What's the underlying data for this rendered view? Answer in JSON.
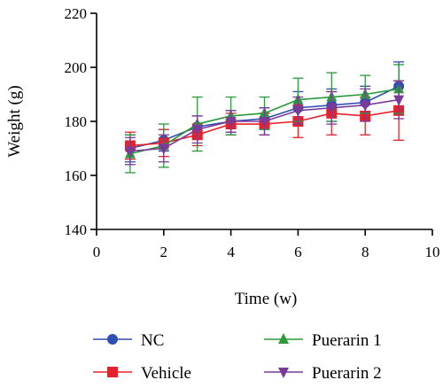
{
  "chart_data": {
    "type": "line",
    "title": "",
    "xlabel": "Time (w)",
    "ylabel": "Weight (g)",
    "xlim": [
      0,
      10
    ],
    "ylim": [
      140,
      220
    ],
    "xticks": [
      0,
      2,
      4,
      6,
      8,
      10
    ],
    "yticks": [
      140,
      160,
      180,
      200,
      220
    ],
    "grid": false,
    "legend_position": "bottom",
    "x": [
      1,
      2,
      3,
      4,
      5,
      6,
      7,
      8,
      9
    ],
    "series": [
      {
        "name": "NC",
        "color": "#2e4eb3",
        "marker": "circle",
        "values": [
          170,
          173,
          178,
          180,
          181,
          185,
          186,
          187,
          193
        ],
        "errors": [
          5,
          4,
          4,
          4,
          4,
          6,
          6,
          6,
          9
        ]
      },
      {
        "name": "Vehicle",
        "color": "#e8202a",
        "marker": "square",
        "values": [
          171,
          172,
          175,
          179,
          179,
          180,
          183,
          182,
          184
        ],
        "errors": [
          5,
          5,
          4,
          4,
          4,
          6,
          8,
          7,
          11
        ]
      },
      {
        "name": "Puerarin 1",
        "color": "#2a9a3a",
        "marker": "triangle-up",
        "values": [
          168,
          171,
          179,
          182,
          183,
          188,
          189,
          190,
          192
        ],
        "errors": [
          7,
          8,
          10,
          7,
          6,
          8,
          9,
          7,
          9
        ]
      },
      {
        "name": "Puerarin 2",
        "color": "#7a3a9a",
        "marker": "triangle-down",
        "values": [
          169,
          170,
          177,
          180,
          180,
          184,
          185,
          186,
          188
        ],
        "errors": [
          5,
          5,
          5,
          4,
          5,
          5,
          6,
          6,
          7
        ]
      }
    ]
  }
}
